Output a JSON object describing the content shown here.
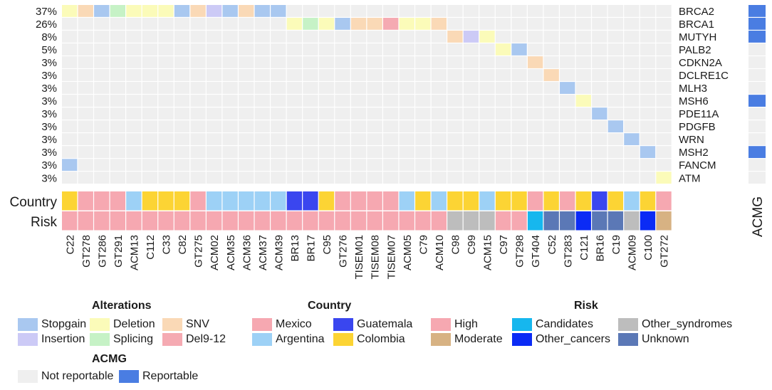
{
  "chart_data": {
    "type": "heatmap",
    "title": "",
    "samples": [
      "C22",
      "GT278",
      "GT286",
      "GT291",
      "ACM13",
      "C112",
      "C33",
      "C82",
      "GT275",
      "ACM02",
      "ACM35",
      "ACM36",
      "ACM37",
      "ACM39",
      "BR13",
      "BR17",
      "C95",
      "GT276",
      "TISEM01",
      "TISEM08",
      "TISEM07",
      "ACM05",
      "C79",
      "ACM10",
      "C98",
      "C99",
      "ACM15",
      "C97",
      "GT298",
      "GT404",
      "C52",
      "GT283",
      "C121",
      "BR16",
      "C19",
      "ACM09",
      "C100",
      "GT272"
    ],
    "genes": [
      {
        "name": "BRCA2",
        "pct": "37%",
        "acmg": "Reportable"
      },
      {
        "name": "BRCA1",
        "pct": "26%",
        "acmg": "Reportable"
      },
      {
        "name": "MUTYH",
        "pct": "8%",
        "acmg": "Reportable"
      },
      {
        "name": "PALB2",
        "pct": "5%",
        "acmg": "Not reportable"
      },
      {
        "name": "CDKN2A",
        "pct": "3%",
        "acmg": "Not reportable"
      },
      {
        "name": "DCLRE1C",
        "pct": "3%",
        "acmg": "Not reportable"
      },
      {
        "name": "MLH3",
        "pct": "3%",
        "acmg": "Not reportable"
      },
      {
        "name": "MSH6",
        "pct": "3%",
        "acmg": "Reportable"
      },
      {
        "name": "PDE11A",
        "pct": "3%",
        "acmg": "Not reportable"
      },
      {
        "name": "PDGFB",
        "pct": "3%",
        "acmg": "Not reportable"
      },
      {
        "name": "WRN",
        "pct": "3%",
        "acmg": "Not reportable"
      },
      {
        "name": "MSH2",
        "pct": "3%",
        "acmg": "Reportable"
      },
      {
        "name": "FANCM",
        "pct": "3%",
        "acmg": "Not reportable"
      },
      {
        "name": "ATM",
        "pct": "3%",
        "acmg": "Not reportable"
      }
    ],
    "alterations": [
      {
        "gene": "BRCA2",
        "sample": "C22",
        "type": "Deletion"
      },
      {
        "gene": "BRCA2",
        "sample": "GT278",
        "type": "SNV"
      },
      {
        "gene": "BRCA2",
        "sample": "GT286",
        "type": "Stopgain"
      },
      {
        "gene": "BRCA2",
        "sample": "GT291",
        "type": "Splicing"
      },
      {
        "gene": "BRCA2",
        "sample": "ACM13",
        "type": "Deletion"
      },
      {
        "gene": "BRCA2",
        "sample": "C112",
        "type": "Deletion"
      },
      {
        "gene": "BRCA2",
        "sample": "C33",
        "type": "Deletion"
      },
      {
        "gene": "BRCA2",
        "sample": "C82",
        "type": "Stopgain"
      },
      {
        "gene": "BRCA2",
        "sample": "GT275",
        "type": "SNV"
      },
      {
        "gene": "BRCA2",
        "sample": "ACM02",
        "type": "Insertion"
      },
      {
        "gene": "BRCA2",
        "sample": "ACM35",
        "type": "Stopgain"
      },
      {
        "gene": "BRCA2",
        "sample": "ACM36",
        "type": "SNV"
      },
      {
        "gene": "BRCA2",
        "sample": "ACM37",
        "type": "Stopgain"
      },
      {
        "gene": "BRCA2",
        "sample": "ACM39",
        "type": "Stopgain"
      },
      {
        "gene": "BRCA1",
        "sample": "BR13",
        "type": "Deletion"
      },
      {
        "gene": "BRCA1",
        "sample": "BR17",
        "type": "Splicing"
      },
      {
        "gene": "BRCA1",
        "sample": "C95",
        "type": "Deletion"
      },
      {
        "gene": "BRCA1",
        "sample": "GT276",
        "type": "Stopgain"
      },
      {
        "gene": "BRCA1",
        "sample": "TISEM01",
        "type": "SNV"
      },
      {
        "gene": "BRCA1",
        "sample": "TISEM08",
        "type": "SNV"
      },
      {
        "gene": "BRCA1",
        "sample": "TISEM07",
        "type": "Del9-12"
      },
      {
        "gene": "BRCA1",
        "sample": "ACM05",
        "type": "Deletion"
      },
      {
        "gene": "BRCA1",
        "sample": "C79",
        "type": "Deletion"
      },
      {
        "gene": "BRCA1",
        "sample": "ACM10",
        "type": "SNV"
      },
      {
        "gene": "MUTYH",
        "sample": "C98",
        "type": "SNV"
      },
      {
        "gene": "MUTYH",
        "sample": "C99",
        "type": "Insertion"
      },
      {
        "gene": "MUTYH",
        "sample": "ACM15",
        "type": "Deletion"
      },
      {
        "gene": "PALB2",
        "sample": "C97",
        "type": "Deletion"
      },
      {
        "gene": "PALB2",
        "sample": "GT298",
        "type": "Stopgain"
      },
      {
        "gene": "CDKN2A",
        "sample": "GT404",
        "type": "SNV"
      },
      {
        "gene": "DCLRE1C",
        "sample": "C52",
        "type": "SNV"
      },
      {
        "gene": "MLH3",
        "sample": "GT283",
        "type": "Stopgain"
      },
      {
        "gene": "MSH6",
        "sample": "C121",
        "type": "Deletion"
      },
      {
        "gene": "PDE11A",
        "sample": "BR16",
        "type": "Stopgain"
      },
      {
        "gene": "PDGFB",
        "sample": "C19",
        "type": "Stopgain"
      },
      {
        "gene": "WRN",
        "sample": "ACM09",
        "type": "Stopgain"
      },
      {
        "gene": "MSH2",
        "sample": "C100",
        "type": "Stopgain"
      },
      {
        "gene": "FANCM",
        "sample": "C22",
        "type": "Stopgain"
      },
      {
        "gene": "ATM",
        "sample": "GT272",
        "type": "Deletion"
      }
    ],
    "country": [
      "Colombia",
      "Mexico",
      "Mexico",
      "Mexico",
      "Argentina",
      "Colombia",
      "Colombia",
      "Colombia",
      "Mexico",
      "Argentina",
      "Argentina",
      "Argentina",
      "Argentina",
      "Argentina",
      "Guatemala",
      "Guatemala",
      "Colombia",
      "Mexico",
      "Mexico",
      "Mexico",
      "Mexico",
      "Argentina",
      "Colombia",
      "Argentina",
      "Colombia",
      "Colombia",
      "Argentina",
      "Colombia",
      "Colombia",
      "Mexico",
      "Colombia",
      "Mexico",
      "Colombia",
      "Guatemala",
      "Colombia",
      "Argentina",
      "Colombia",
      "Mexico"
    ],
    "risk": [
      "High",
      "High",
      "High",
      "High",
      "High",
      "High",
      "High",
      "High",
      "High",
      "High",
      "High",
      "High",
      "High",
      "High",
      "High",
      "High",
      "High",
      "High",
      "High",
      "High",
      "High",
      "High",
      "High",
      "High",
      "Other_syndromes",
      "Other_syndromes",
      "Other_syndromes",
      "High",
      "High",
      "Candidates",
      "Unknown",
      "Unknown",
      "Other_cancers",
      "Unknown",
      "Unknown",
      "Other_syndromes",
      "Other_cancers",
      "Moderate"
    ],
    "row_labels": {
      "country": "Country",
      "risk": "Risk",
      "acmg": "ACMG"
    },
    "empty_color": "#efefef",
    "alteration_colors": {
      "Stopgain": "#a9c8f0",
      "Insertion": "#cccaf6",
      "Deletion": "#fbfbb9",
      "Splicing": "#c6f2c6",
      "SNV": "#fad9b6",
      "Del9-12": "#f5aab2"
    },
    "country_colors": {
      "Mexico": "#f6a8b1",
      "Argentina": "#9dd1f6",
      "Guatemala": "#3a46ef",
      "Colombia": "#fcd434"
    },
    "risk_colors": {
      "High": "#f6a8b1",
      "Moderate": "#d7b283",
      "Candidates": "#16b7ee",
      "Other_cancers": "#0b2bf5",
      "Other_syndromes": "#bdbdbd",
      "Unknown": "#5b78b6"
    },
    "acmg_colors": {
      "Not reportable": "#efefef",
      "Reportable": "#4a7de2"
    }
  },
  "legend": {
    "alterations": {
      "title": "Alterations",
      "items": [
        {
          "label": "Stopgain",
          "color": "#a9c8f0"
        },
        {
          "label": "Insertion",
          "color": "#cccaf6"
        },
        {
          "label": "Deletion",
          "color": "#fbfbb9"
        },
        {
          "label": "Splicing",
          "color": "#c6f2c6"
        },
        {
          "label": "SNV",
          "color": "#fad9b6"
        },
        {
          "label": "Del9-12",
          "color": "#f5aab2"
        }
      ]
    },
    "country": {
      "title": "Country",
      "items": [
        {
          "label": "Mexico",
          "color": "#f6a8b1"
        },
        {
          "label": "Argentina",
          "color": "#9dd1f6"
        },
        {
          "label": "Guatemala",
          "color": "#3a46ef"
        },
        {
          "label": "Colombia",
          "color": "#fcd434"
        }
      ]
    },
    "risk": {
      "title": "Risk",
      "items": [
        {
          "label": "High",
          "color": "#f6a8b1"
        },
        {
          "label": "Moderate",
          "color": "#d7b283"
        },
        {
          "label": "Candidates",
          "color": "#16b7ee"
        },
        {
          "label": "Other_cancers",
          "color": "#0b2bf5"
        },
        {
          "label": "Other_syndromes",
          "color": "#bdbdbd"
        },
        {
          "label": "Unknown",
          "color": "#5b78b6"
        }
      ]
    },
    "acmg": {
      "title": "ACMG",
      "items": [
        {
          "label": "Not reportable",
          "color": "#efefef"
        },
        {
          "label": "Reportable",
          "color": "#4a7de2"
        }
      ]
    }
  }
}
